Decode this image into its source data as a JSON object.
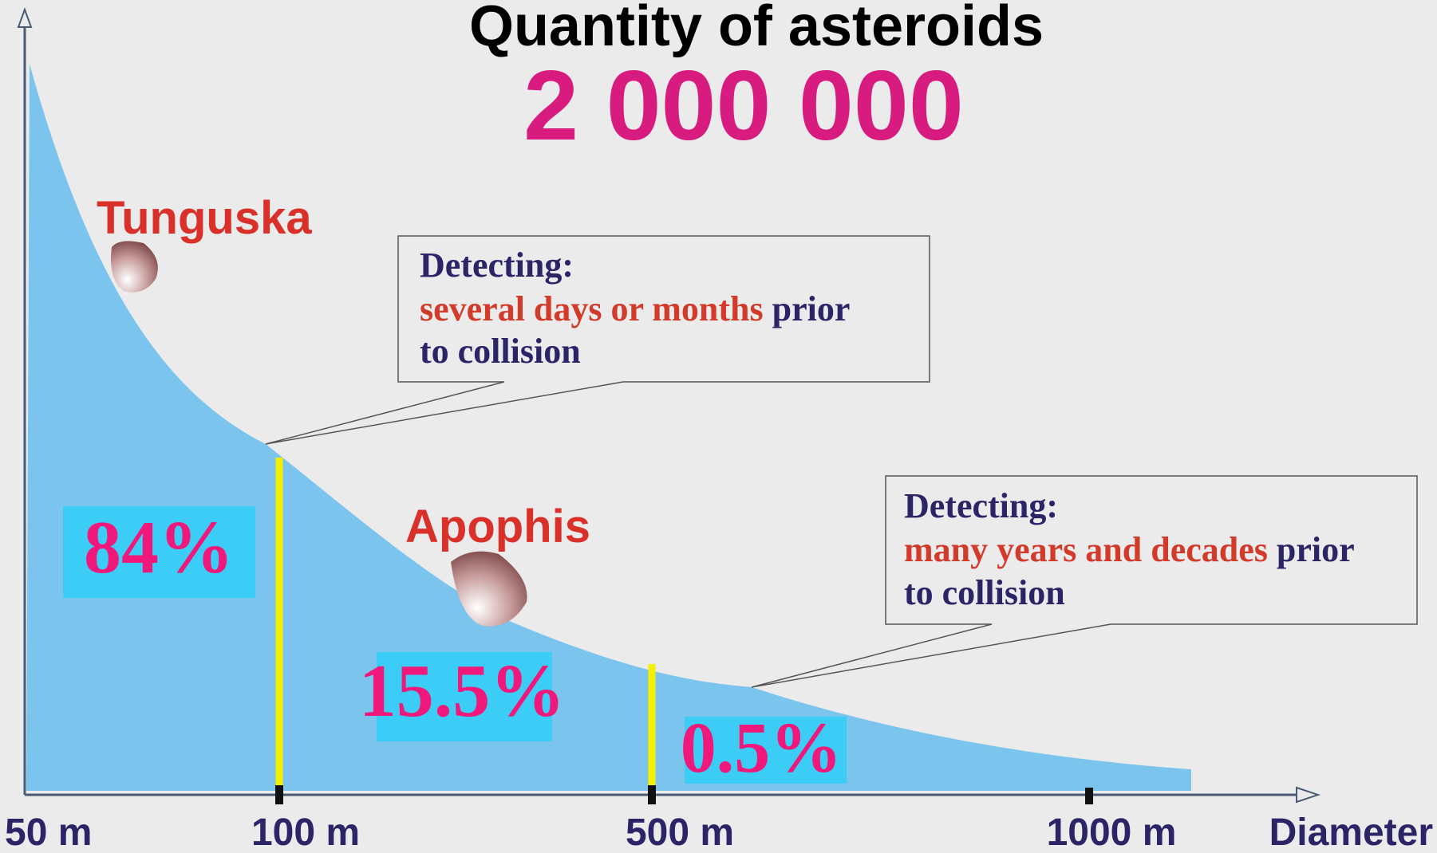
{
  "header": {
    "title": "Quantity of asteroids",
    "total": "2 000 000"
  },
  "axis": {
    "ticks": [
      "50 m",
      "100 m",
      "500 m",
      "1000 m"
    ],
    "label": "Diameter"
  },
  "objects": [
    "Tunguska",
    "Apophis"
  ],
  "shares": [
    "84%",
    "15.5%",
    "0.5%"
  ],
  "callouts": [
    {
      "heading": "Detecting:",
      "highlight": "several days or months",
      "rest": "prior",
      "line3": "to collision"
    },
    {
      "heading": "Detecting:",
      "highlight": "many years and decades",
      "rest": "prior",
      "line3": "to collision"
    }
  ]
}
